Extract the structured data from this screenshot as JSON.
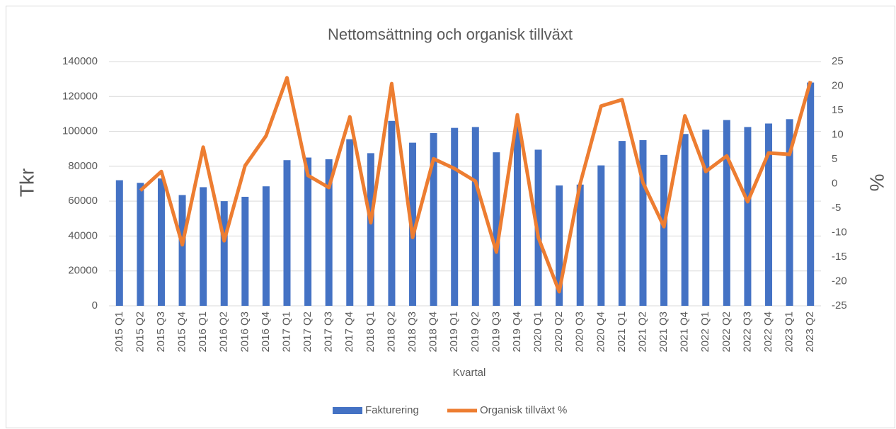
{
  "chart_data": {
    "type": "bar_line",
    "title": "Nettomsättning och organisk tillväxt",
    "x_label": "Kvartal",
    "y_label": "Tkr",
    "y2_label": "%",
    "categories": [
      "2015 Q1",
      "2015 Q2",
      "2015 Q3",
      "2015 Q4",
      "2016 Q1",
      "2016 Q2",
      "2016 Q3",
      "2016 Q4",
      "2017 Q1",
      "2017 Q2",
      "2017 Q3",
      "2017 Q4",
      "2018 Q1",
      "2018 Q2",
      "2018 Q3",
      "2018 Q4",
      "2019 Q1",
      "2019 Q2",
      "2019 Q3",
      "2019 Q4",
      "2020 Q1",
      "2020 Q2",
      "2020 Q3",
      "2020 Q4",
      "2021 Q1",
      "2021 Q2",
      "2021 Q3",
      "2021 Q4",
      "2022 Q1",
      "2022 Q2",
      "2022 Q3",
      "2022 Q4",
      "2023 Q1",
      "2023 Q2"
    ],
    "series": [
      {
        "name": "Fakturering",
        "type": "bar",
        "color": "#4472c4",
        "values": [
          72000,
          70500,
          73000,
          63500,
          68000,
          60000,
          62500,
          68500,
          83500,
          85000,
          84000,
          95500,
          87500,
          106000,
          93500,
          99000,
          102000,
          102500,
          88000,
          103000,
          89500,
          69000,
          69500,
          80500,
          94500,
          95000,
          86500,
          98500,
          101000,
          106500,
          102500,
          104500,
          107000,
          128000
        ]
      },
      {
        "name": "Organisk tillväxt %",
        "type": "line",
        "color": "#ed7d31",
        "axis": "y2",
        "values": [
          null,
          -1.4,
          2.5,
          -12.5,
          7.5,
          -11.7,
          3.7,
          9.8,
          21.7,
          1.7,
          -0.8,
          13.7,
          -8,
          20.5,
          -11,
          5.1,
          3.1,
          0.5,
          -14,
          14.1,
          -11,
          -22.1,
          0,
          15.9,
          17.2,
          0.2,
          -8.8,
          13.9,
          2.5,
          5.7,
          -3.7,
          6.3,
          6,
          21
        ]
      }
    ],
    "ylim": [
      0,
      140000
    ],
    "yticks": [
      0,
      20000,
      40000,
      60000,
      80000,
      100000,
      120000,
      140000
    ],
    "y2lim": [
      -25,
      25
    ],
    "y2ticks": [
      -25,
      -20,
      -15,
      -10,
      -5,
      0,
      5,
      10,
      15,
      20,
      25
    ],
    "grid": true,
    "legend": "bottom"
  }
}
